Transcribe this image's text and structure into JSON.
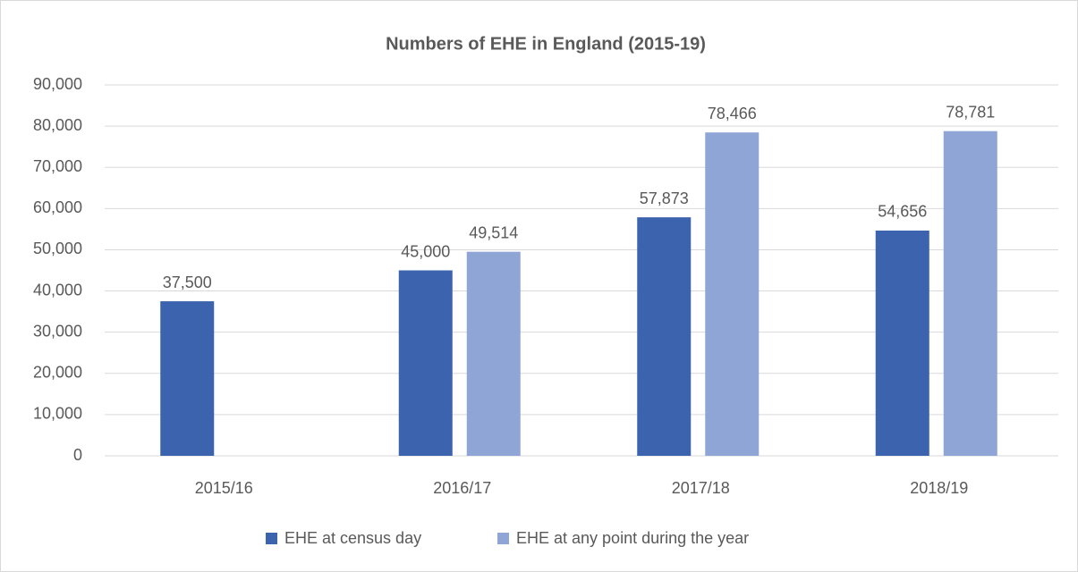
{
  "chart_data": {
    "type": "bar",
    "title": "Numbers of EHE in England (2015-19)",
    "categories": [
      "2015/16",
      "2016/17",
      "2017/18",
      "2018/19"
    ],
    "series": [
      {
        "name": "EHE at census day",
        "color": "#3c63ad",
        "values": [
          37500,
          45000,
          57873,
          54656
        ],
        "value_labels": [
          "37,500",
          "45,000",
          "57,873",
          "54,656"
        ]
      },
      {
        "name": "EHE at any point during the year",
        "color": "#8fa5d6",
        "values": [
          null,
          49514,
          78466,
          78781
        ],
        "value_labels": [
          null,
          "49,514",
          "78,466",
          "78,781"
        ]
      }
    ],
    "ylim": [
      0,
      90000
    ],
    "yticks": [
      0,
      {
        "value": 10000,
        "label": "10,000"
      },
      {
        "value": 20000,
        "label": "20,000"
      },
      {
        "value": 30000,
        "label": "30,000"
      },
      {
        "value": 40000,
        "label": "40,000"
      },
      {
        "value": 50000,
        "label": "50,000"
      },
      {
        "value": 60000,
        "label": "60,000"
      },
      {
        "value": 70000,
        "label": "70,000"
      },
      {
        "value": 80000,
        "label": "80,000"
      },
      {
        "value": 90000,
        "label": "90,000"
      }
    ],
    "grid": true,
    "legend": "bottom"
  }
}
